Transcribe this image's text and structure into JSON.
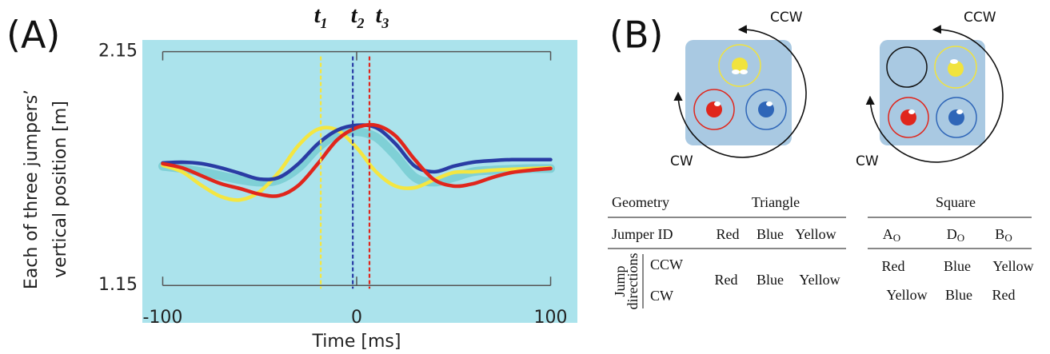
{
  "panel_labels": {
    "a": "(A)",
    "b": "(B)"
  },
  "chart_data": {
    "type": "line",
    "x": [
      -100,
      -90,
      -80,
      -70,
      -60,
      -50,
      -40,
      -30,
      -20,
      -10,
      0,
      10,
      20,
      30,
      40,
      50,
      60,
      70,
      80,
      90,
      100
    ],
    "series": [
      {
        "color": "#7fd0d6",
        "values": [
          1.66,
          1.65,
          1.636,
          1.619,
          1.602,
          1.592,
          1.602,
          1.653,
          1.739,
          1.797,
          1.808,
          1.784,
          1.705,
          1.612,
          1.592,
          1.612,
          1.636,
          1.643,
          1.647,
          1.65,
          1.65
        ]
      },
      {
        "color": "#f4e641",
        "values": [
          1.664,
          1.636,
          1.578,
          1.53,
          1.516,
          1.551,
          1.636,
          1.749,
          1.818,
          1.814,
          1.739,
          1.636,
          1.575,
          1.568,
          1.602,
          1.633,
          1.636,
          1.643,
          1.647,
          1.65,
          1.653
        ]
      },
      {
        "color": "#2a3ca4",
        "values": [
          1.674,
          1.677,
          1.671,
          1.653,
          1.629,
          1.605,
          1.612,
          1.671,
          1.756,
          1.814,
          1.835,
          1.825,
          1.756,
          1.66,
          1.636,
          1.66,
          1.677,
          1.684,
          1.688,
          1.688,
          1.688
        ]
      },
      {
        "color": "#e0261c",
        "values": [
          1.671,
          1.653,
          1.619,
          1.585,
          1.564,
          1.54,
          1.534,
          1.578,
          1.671,
          1.773,
          1.825,
          1.835,
          1.79,
          1.688,
          1.602,
          1.575,
          1.585,
          1.612,
          1.633,
          1.643,
          1.65
        ]
      }
    ],
    "xlim": [
      -110.5,
      113.8
    ],
    "ylim": [
      0.99,
      2.2
    ],
    "xticks": [
      -100,
      0,
      100
    ],
    "yticks": [
      2.15,
      1.15
    ],
    "xlabel": "Time [ms]",
    "ylabel": [
      "Each of three  jumpers’",
      "vertical position [m]"
    ],
    "background": "#abe3ec",
    "markers": [
      {
        "label": "t",
        "subscript": "1",
        "x": -18.5,
        "color": "#f4e641"
      },
      {
        "label": "t",
        "subscript": "2",
        "x": -2,
        "color": "#2a3ca4"
      },
      {
        "label": "t",
        "subscript": "3",
        "x": 6.6,
        "color": "#e0261c"
      }
    ]
  },
  "diagram": {
    "left": {
      "ccw": "CCW",
      "cw": "CW"
    },
    "right": {
      "ccw": "CCW",
      "cw": "CW"
    }
  },
  "table": {
    "header": [
      "Geometry",
      "Triangle",
      "Square"
    ],
    "id_label": "Jumper ID",
    "triangle_ids": [
      "Red",
      "Blue",
      "Yellow"
    ],
    "square_ids": [
      {
        "base": "A",
        "sub": "O"
      },
      {
        "base": "D",
        "sub": "O"
      },
      {
        "base": "B",
        "sub": "O"
      }
    ],
    "direction_label": [
      "Jump",
      "directions"
    ],
    "triangle_directions": [
      "Red",
      "Blue",
      "Yellow"
    ],
    "rows": [
      {
        "label": "CCW",
        "square": [
          "Red",
          "Blue",
          "Yellow"
        ]
      },
      {
        "label": "CW",
        "square": [
          "Yellow",
          "Blue",
          "Red"
        ]
      }
    ]
  }
}
